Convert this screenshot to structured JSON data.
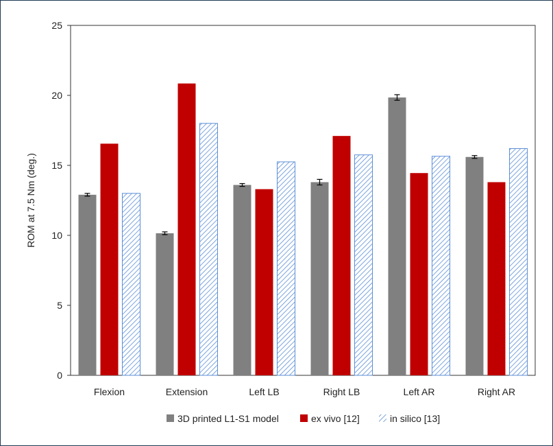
{
  "chart_data": {
    "type": "bar",
    "ylabel": "ROM at 7.5 Nm (deg.)",
    "xlabel": "",
    "ylim": [
      0,
      25
    ],
    "yticks": [
      0,
      5,
      10,
      15,
      20,
      25
    ],
    "grid": false,
    "legend_position": "bottom",
    "categories": [
      "Flexion",
      "Extension",
      "Left LB",
      "Right LB",
      "Left AR",
      "Right AR"
    ],
    "series": [
      {
        "name": "3D printed L1-S1 model",
        "color": "#808080",
        "pattern": "solid",
        "values": [
          12.9,
          10.15,
          13.6,
          13.8,
          19.85,
          15.6
        ],
        "errors": [
          0.1,
          0.1,
          0.1,
          0.2,
          0.2,
          0.1
        ]
      },
      {
        "name": "ex vivo [12]",
        "color": "#c00000",
        "pattern": "solid",
        "values": [
          16.55,
          20.85,
          13.3,
          17.1,
          14.45,
          13.8
        ]
      },
      {
        "name": "in silico [13]",
        "color": "#5b8ed6",
        "pattern": "hatch",
        "values": [
          13.0,
          18.0,
          15.25,
          15.75,
          15.65,
          16.2
        ]
      }
    ]
  }
}
